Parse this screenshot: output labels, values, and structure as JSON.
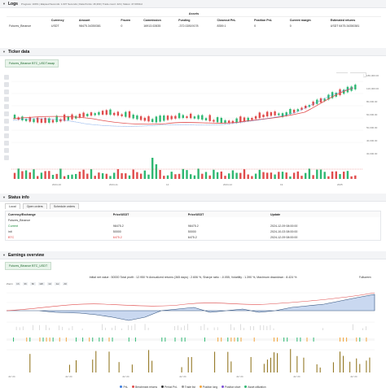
{
  "logs": {
    "title": "Logs",
    "subtitle": "Progress: 100% | Elapsed Seconds: 1.037 Seconds | Data Points: 46,360 | Trade count: 424 | Status: 47.60%bd"
  },
  "assets": {
    "group_header": "Assets",
    "columns": [
      "",
      "Currency",
      "Amount",
      "Frozen",
      "Commission",
      "Funding",
      "Closeout PnL",
      "Position PnL",
      "Current margin",
      "Estimated returns"
    ],
    "rows": [
      [
        "Futures_Binance",
        "USDT",
        "98475.34350381",
        "0",
        "16913.02835",
        "-372.02819178",
        "8359.1",
        "0",
        "0",
        "USDT 6475.34350381"
      ]
    ]
  },
  "ticker": {
    "title": "Ticker data",
    "tab": "Futures_Binance BTC_USDT.swap",
    "legend": [
      "Overlay(mkt)",
      "Overlay(3)",
      "Mirror MA",
      "RSI",
      "Long MA"
    ],
    "time_label": "Auto scale",
    "yaxis": [
      "180,000.00",
      "120,000.00",
      "80,000.00",
      "60,000.00",
      "50,000.00",
      "40,000.00",
      "30,000.00"
    ],
    "xaxis": [
      "2024-10",
      "2024-11",
      "14",
      "2024-12",
      "19",
      "2025"
    ],
    "ctrl_left": "Zoom",
    "ctrl_right": "Auto scale"
  },
  "status": {
    "title": "Status info",
    "tabs": [
      "Local",
      "Open orders",
      "Schedule orders"
    ],
    "columns": [
      "Currency/Exchange",
      "Price/USDT",
      "Price/USDT",
      "Update"
    ],
    "header_row": [
      "Futures_Binance",
      "",
      "",
      ""
    ],
    "rows": [
      {
        "a": "Current",
        "b": "98475.2",
        "c": "98475.2",
        "d": "2024-12-09 08:00:00"
      },
      {
        "a": "init",
        "b": "50000",
        "c": "50000",
        "d": "2024-10-03 08:00:00"
      },
      {
        "a": "BTC",
        "b": "6475.2",
        "c": "6475.2",
        "d": "2024-12-09 08:00:00"
      }
    ]
  },
  "earnings": {
    "title": "Earnings overview",
    "tab": "Futures_Binance BTC_USDT",
    "summary": "Initial net value : 50000 Total profit : 12.950 % Annualized returns (365 days) : 2.606 %, Sharpe ratio : -0.055, Volatility : 1.390 %, Maximum drawdown : 8.424 %",
    "fullscreen": "Fullscreen",
    "zoom": [
      "Zoom",
      "1h",
      "3h",
      "6h",
      "12h",
      "1d",
      "1w",
      "All"
    ],
    "xaxis": [
      "Jul '24",
      "Jul '24",
      "Jul '24",
      "Jul '24",
      "Jul '24",
      "Jul '24",
      "Jul '24"
    ],
    "legend": [
      {
        "label": "PnL",
        "color": "#3c7ddf"
      },
      {
        "label": "Benchmark returns",
        "color": "#e04c4c"
      },
      {
        "label": "Period PnL",
        "color": "#333333"
      },
      {
        "label": "Trade list",
        "color": "#999999"
      },
      {
        "label": "Position long",
        "color": "#f2a33a"
      },
      {
        "label": "Position short",
        "color": "#7d4fd6"
      },
      {
        "label": "Asset utilization",
        "color": "#2eb872"
      }
    ]
  }
}
